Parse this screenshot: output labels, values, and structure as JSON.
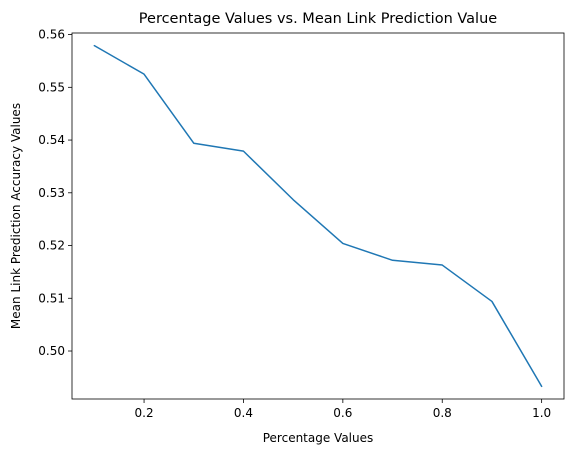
{
  "chart_data": {
    "type": "line",
    "title": "Percentage Values vs. Mean Link Prediction Value",
    "xlabel": "Percentage Values",
    "ylabel": "Mean Link Prediction Accuracy Values",
    "xlim": [
      0.055,
      1.045
    ],
    "ylim": [
      0.4909,
      0.5603
    ],
    "xticks": [
      0.2,
      0.4,
      0.6,
      0.8,
      1.0
    ],
    "xtick_labels": [
      "0.2",
      "0.4",
      "0.6",
      "0.8",
      "1.0"
    ],
    "yticks": [
      0.5,
      0.51,
      0.52,
      0.53,
      0.54,
      0.55,
      0.56
    ],
    "ytick_labels": [
      "0.50",
      "0.51",
      "0.52",
      "0.53",
      "0.54",
      "0.55",
      "0.56"
    ],
    "grid": false,
    "series": [
      {
        "color": "#1f77b4",
        "x": [
          0.1,
          0.2,
          0.3,
          0.4,
          0.5,
          0.6,
          0.7,
          0.8,
          0.9,
          1.0
        ],
        "y": [
          0.5579,
          0.5525,
          0.5394,
          0.5379,
          0.5287,
          0.5204,
          0.5172,
          0.5163,
          0.5094,
          0.4933
        ]
      }
    ]
  }
}
